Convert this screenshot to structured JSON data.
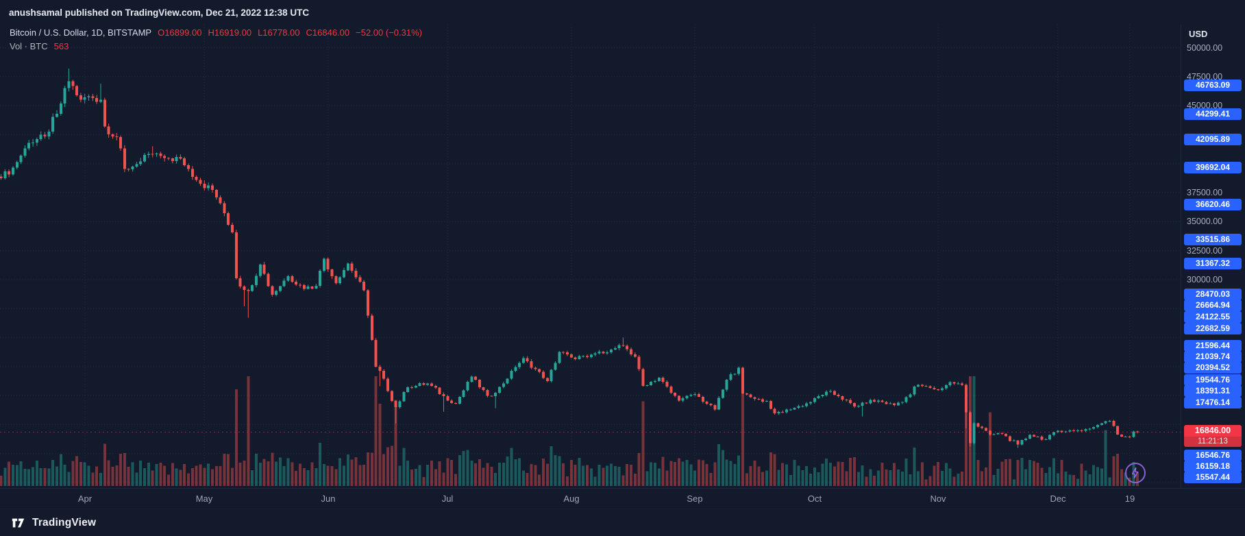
{
  "header": {
    "published_line": "anushsamal published on TradingView.com, Dec 21, 2022 12:38 UTC"
  },
  "legend": {
    "symbol": "Bitcoin / U.S. Dollar, 1D, BITSTAMP",
    "open": "O16899.00",
    "high": "H16919.00",
    "low": "L16778.00",
    "close": "C16846.00",
    "change": "−52.00 (−0.31%)",
    "vol_label": "Vol · BTC",
    "vol_value": "563"
  },
  "axis": {
    "currency": "USD",
    "grid_labels": [
      "50000.00",
      "47500.00",
      "45000.00",
      "37500.00",
      "35000.00",
      "32500.00",
      "30000.00"
    ],
    "alert_labels": [
      "46763.09",
      "44299.41",
      "42095.89",
      "39692.04",
      "36620.46",
      "33515.86",
      "31367.32",
      "28470.03",
      "26664.94",
      "24122.55",
      "22682.59",
      "21596.44",
      "21039.74",
      "20394.52",
      "19544.76",
      "18391.31",
      "17476.14",
      "16546.76",
      "16159.18",
      "15547.44"
    ]
  },
  "current": {
    "price": "16846.00",
    "countdown": "11:21:13"
  },
  "time_axis": {
    "ticks": [
      {
        "label": "Apr",
        "day": 21
      },
      {
        "label": "May",
        "day": 51
      },
      {
        "label": "Jun",
        "day": 82
      },
      {
        "label": "Jul",
        "day": 112
      },
      {
        "label": "Aug",
        "day": 143
      },
      {
        "label": "Sep",
        "day": 174
      },
      {
        "label": "Oct",
        "day": 204
      },
      {
        "label": "Nov",
        "day": 235
      },
      {
        "label": "Dec",
        "day": 265
      },
      {
        "label": "19",
        "day": 283
      }
    ]
  },
  "controls": {
    "boost_icon": "lightning-bolt"
  },
  "footer": {
    "brand": "TradingView"
  },
  "colors": {
    "background": "#131a2b",
    "up": "#26a69a",
    "down": "#ef5350",
    "label_blue": "#2962ff",
    "label_red": "#f23645",
    "axis_text": "#a8b0c0",
    "boost_purple": "#8a63d2"
  },
  "chart_data": {
    "type": "candlestick",
    "title": "Bitcoin / U.S. Dollar, 1D, BITSTAMP",
    "interval": "1D",
    "y_axis": {
      "label": "USD",
      "grid_step": 2500,
      "visible_range": [
        12000,
        50500
      ],
      "grid": true
    },
    "x_axis": {
      "day_zero_date": "2022-03-11",
      "last_day": 285,
      "last_day_date": "2022-12-21"
    },
    "last": {
      "open": 16899,
      "high": 16919,
      "low": 16778,
      "close": 16846,
      "change": -52,
      "change_pct": -0.31
    },
    "colors": {
      "up": "#26a69a",
      "down": "#ef5350"
    },
    "anchors": [
      [
        0,
        38730
      ],
      [
        3,
        39670
      ],
      [
        7,
        41770
      ],
      [
        11,
        42360
      ],
      [
        14,
        44310
      ],
      [
        17,
        47100,
        null,
        48200
      ],
      [
        20,
        45520
      ],
      [
        22,
        45810
      ],
      [
        25,
        45500,
        null,
        46890
      ],
      [
        26,
        43200
      ],
      [
        29,
        42280
      ],
      [
        31,
        39530
      ],
      [
        34,
        39940
      ],
      [
        38,
        40800,
        null,
        41500
      ],
      [
        41,
        40480
      ],
      [
        45,
        40440
      ],
      [
        49,
        38600
      ],
      [
        53,
        37730
      ],
      [
        55,
        36570
      ],
      [
        58,
        34060
      ],
      [
        59,
        30100
      ],
      [
        61,
        29100,
        27700,
        null
      ],
      [
        62,
        29020,
        26700,
        null
      ],
      [
        65,
        31300
      ],
      [
        68,
        28700
      ],
      [
        72,
        30290
      ],
      [
        76,
        29200
      ],
      [
        79,
        29470
      ],
      [
        81,
        31790
      ],
      [
        84,
        29700
      ],
      [
        87,
        31370
      ],
      [
        89,
        30200
      ],
      [
        91,
        29080
      ],
      [
        94,
        22490
      ],
      [
        95,
        22130,
        20800,
        null
      ],
      [
        97,
        20380
      ],
      [
        99,
        19010,
        17600,
        null
      ],
      [
        102,
        20710
      ],
      [
        107,
        21030
      ],
      [
        111,
        19940,
        18600,
        null
      ],
      [
        114,
        19300
      ],
      [
        118,
        21640
      ],
      [
        122,
        19970
      ],
      [
        124,
        20230,
        18900,
        null
      ],
      [
        129,
        22450
      ],
      [
        131,
        23230
      ],
      [
        137,
        21260
      ],
      [
        140,
        23770
      ],
      [
        143,
        23270
      ],
      [
        147,
        23300
      ],
      [
        150,
        23800
      ],
      [
        153,
        23950
      ],
      [
        156,
        24300,
        null,
        25000
      ],
      [
        159,
        23340
      ],
      [
        161,
        20830
      ],
      [
        165,
        21530
      ],
      [
        168,
        20240
      ],
      [
        170,
        19550
      ],
      [
        174,
        20130
      ],
      [
        179,
        18790
      ],
      [
        182,
        21360
      ],
      [
        185,
        22400
      ],
      [
        186,
        20170
      ],
      [
        189,
        19700
      ],
      [
        192,
        19540
      ],
      [
        194,
        18460
      ],
      [
        198,
        18800
      ],
      [
        200,
        19080
      ],
      [
        203,
        19430
      ],
      [
        207,
        20340
      ],
      [
        210,
        19950
      ],
      [
        214,
        19050
      ],
      [
        216,
        19380,
        18190,
        null
      ],
      [
        220,
        19550
      ],
      [
        224,
        19160
      ],
      [
        228,
        20080
      ],
      [
        229,
        20770
      ],
      [
        232,
        20810
      ],
      [
        235,
        20480
      ],
      [
        238,
        21150
      ],
      [
        241,
        20910
      ],
      [
        242,
        18540,
        17170,
        null
      ],
      [
        243,
        15880,
        15590,
        null
      ],
      [
        244,
        17600
      ],
      [
        248,
        16620
      ],
      [
        251,
        16690
      ],
      [
        255,
        15780,
        15480,
        null
      ],
      [
        258,
        16600
      ],
      [
        262,
        16210
      ],
      [
        265,
        16970
      ],
      [
        269,
        16970
      ],
      [
        273,
        17130
      ],
      [
        277,
        17780
      ],
      [
        278,
        17810
      ],
      [
        279,
        17360
      ],
      [
        280,
        16630
      ],
      [
        283,
        16440
      ],
      [
        284,
        16900
      ],
      [
        285,
        16846
      ]
    ],
    "volume_spikes": {
      "59": 0.55,
      "62": 0.95,
      "94": 0.8,
      "95": 0.6,
      "99": 0.5,
      "161": 0.35,
      "186": 0.45,
      "242": 0.6,
      "243": 0.75,
      "244": 0.65,
      "248": 0.4,
      "277": 0.3
    }
  }
}
